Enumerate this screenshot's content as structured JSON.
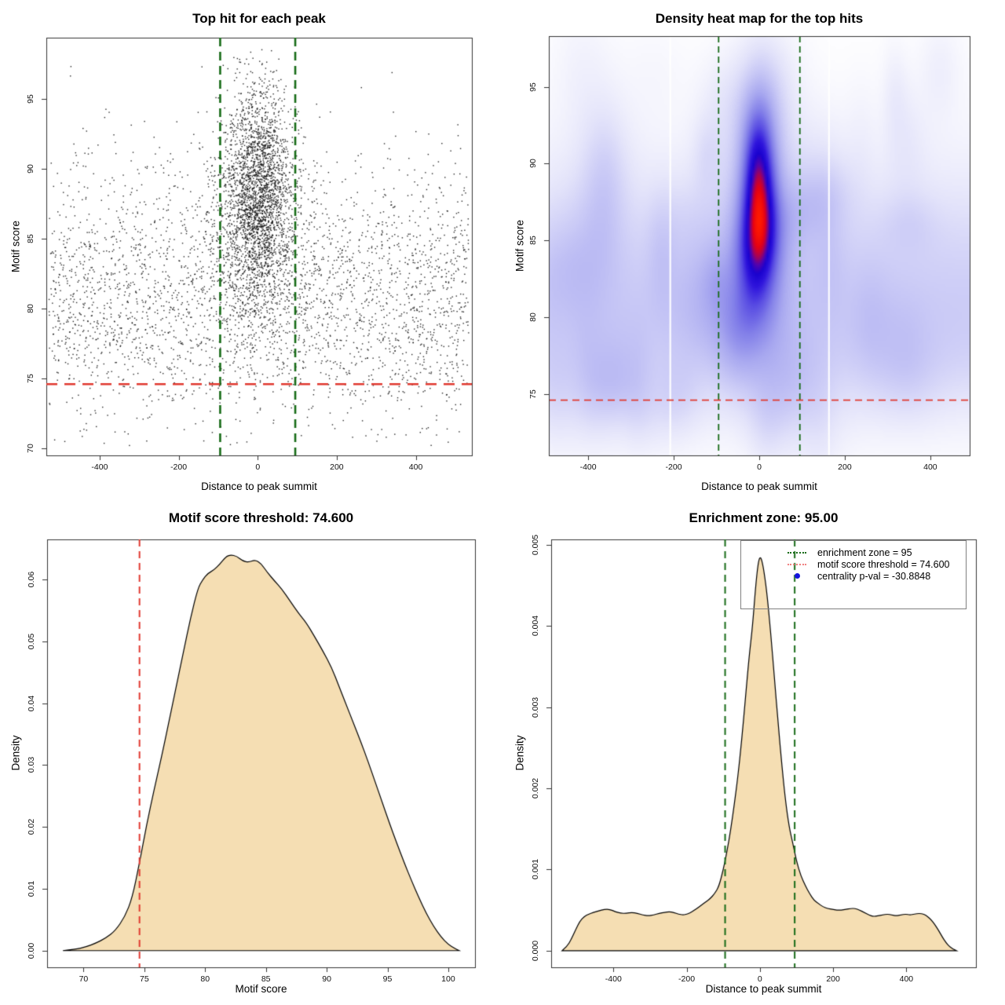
{
  "colors": {
    "green_line": "#176b17",
    "red_line": "#e03a30",
    "legend_salmon": "#f08080",
    "legend_blue": "#1515dd",
    "area_fill": "#f5deb3",
    "curve_stroke": "#000000",
    "point": "#141414",
    "axis": "#333333",
    "legend_border": "#808080"
  },
  "chart_data": [
    {
      "id": "top-hit-scatter",
      "type": "scatter",
      "title": "Top hit for each peak",
      "xlabel": "Distance to peak summit",
      "ylabel": "Motif score",
      "xlim": [
        -535,
        542
      ],
      "ylim": [
        69.5,
        99.4
      ],
      "xticks": {
        "values": [
          -400,
          -200,
          0,
          200,
          400
        ],
        "labels": [
          "-400",
          "-200",
          "0",
          "200",
          "400"
        ]
      },
      "yticks": {
        "values": [
          70,
          75,
          80,
          85,
          90,
          95
        ],
        "labels": [
          "70",
          "75",
          "80",
          "85",
          "90",
          "95"
        ]
      },
      "enrichment_zone_x": [
        -95,
        95
      ],
      "score_threshold_y": 74.6,
      "points_spec": {
        "seed": 42,
        "groups": [
          {
            "n": 3000,
            "x": {
              "dist": "uniform",
              "min": -528,
              "max": 534
            },
            "y": {
              "dist": "normal",
              "mean": 81,
              "sd": 4.6,
              "min": 70.2,
              "max": 98.8
            }
          },
          {
            "n": 1400,
            "x": {
              "dist": "normal",
              "mean": -2,
              "sd": 60,
              "min": -230,
              "max": 230
            },
            "y": {
              "dist": "normal",
              "mean": 86.5,
              "sd": 4.4,
              "min": 72.5,
              "max": 98.6
            }
          },
          {
            "n": 1500,
            "x": {
              "dist": "normal",
              "mean": 2,
              "sd": 38,
              "min": -165,
              "max": 165
            },
            "y": {
              "dist": "normal",
              "mean": 89,
              "sd": 3.6,
              "min": 74,
              "max": 98.4
            }
          }
        ]
      }
    },
    {
      "id": "density-heatmap",
      "type": "heatmap",
      "title": "Density heat map for the top hits",
      "xlabel": "Distance to peak summit",
      "ylabel": "Motif score",
      "xlim": [
        -492,
        492
      ],
      "ylim": [
        71.0,
        98.3
      ],
      "xticks": {
        "values": [
          -400,
          -200,
          0,
          200,
          400
        ],
        "labels": [
          "-400",
          "-200",
          "0",
          "200",
          "400"
        ]
      },
      "yticks": {
        "values": [
          75,
          80,
          85,
          90,
          95
        ],
        "labels": [
          "75",
          "80",
          "85",
          "90",
          "95"
        ]
      },
      "enrichment_zone_x": [
        -95,
        95
      ],
      "score_threshold_y": 74.6,
      "white_gaps_x": [
        -208,
        163
      ],
      "colormap": [
        [
          0.0,
          "#ffffff"
        ],
        [
          0.06,
          "#f5f5fd"
        ],
        [
          0.16,
          "#e3e3fa"
        ],
        [
          0.28,
          "#c9c9f6"
        ],
        [
          0.42,
          "#a9a9f0"
        ],
        [
          0.55,
          "#8380e9"
        ],
        [
          0.66,
          "#5a4ee3"
        ],
        [
          0.75,
          "#2f15dd"
        ],
        [
          0.82,
          "#1a02cf"
        ],
        [
          0.87,
          "#5403ae"
        ],
        [
          0.91,
          "#a80255"
        ],
        [
          0.95,
          "#e60113"
        ],
        [
          1.0,
          "#ff1a00"
        ]
      ],
      "field": {
        "blobs": [
          {
            "a": 0.55,
            "x": 0,
            "y": 87.6,
            "sx": 32,
            "sy": 3.6
          },
          {
            "a": 0.38,
            "x": -2,
            "y": 91.0,
            "sx": 29,
            "sy": 3.0
          },
          {
            "a": 0.3,
            "x": -8,
            "y": 84.2,
            "sx": 36,
            "sy": 3.2
          },
          {
            "a": 0.22,
            "x": 2,
            "y": 87.5,
            "sx": 60,
            "sy": 6.3
          },
          {
            "a": 0.13,
            "x": 20,
            "y": 95.3,
            "sx": 50,
            "sy": 2.7
          },
          {
            "a": 0.08,
            "x": -25,
            "y": 79.5,
            "sx": 75,
            "sy": 3.0
          }
        ],
        "ridges": [
          {
            "a": 0.3,
            "y": 81.5,
            "sy": 5.0
          },
          {
            "a": 0.12,
            "y": 77.0,
            "sy": 3.2
          },
          {
            "a": 0.08,
            "y": 87.0,
            "sy": 6.0
          }
        ],
        "patches": {
          "count": 48,
          "seed": 11,
          "x": [
            -500,
            500
          ],
          "y": [
            72.5,
            96.5
          ],
          "a": [
            0.04,
            0.12
          ],
          "sx": [
            20,
            60
          ],
          "sy": [
            1.4,
            3.4
          ]
        }
      }
    },
    {
      "id": "motif-score-density",
      "type": "area",
      "title": "Motif score threshold: 74.600",
      "xlabel": "Motif score",
      "ylabel": "Density",
      "xlim": [
        67.0,
        102.2
      ],
      "ylim": [
        -0.0027,
        0.0665
      ],
      "xticks": {
        "values": [
          70,
          75,
          80,
          85,
          90,
          95,
          100
        ],
        "labels": [
          "70",
          "75",
          "80",
          "85",
          "90",
          "95",
          "100"
        ]
      },
      "yticks": {
        "values": [
          0,
          0.01,
          0.02,
          0.03,
          0.04,
          0.05,
          0.06
        ],
        "labels": [
          "0.00",
          "0.01",
          "0.02",
          "0.03",
          "0.04",
          "0.05",
          "0.06"
        ]
      },
      "score_threshold_x": 74.6,
      "curve": [
        [
          68.3,
          0
        ],
        [
          69.3,
          0.0002
        ],
        [
          70.2,
          0.0006
        ],
        [
          71,
          0.0012
        ],
        [
          71.8,
          0.002
        ],
        [
          72.6,
          0.0032
        ],
        [
          73.4,
          0.0055
        ],
        [
          74,
          0.0085
        ],
        [
          74.6,
          0.0142
        ],
        [
          75.2,
          0.0205
        ],
        [
          75.8,
          0.026
        ],
        [
          76.4,
          0.0312
        ],
        [
          77,
          0.0368
        ],
        [
          77.6,
          0.0425
        ],
        [
          78.2,
          0.0482
        ],
        [
          78.8,
          0.0538
        ],
        [
          79.4,
          0.0586
        ],
        [
          79.8,
          0.06
        ],
        [
          80.2,
          0.061
        ],
        [
          80.7,
          0.0615
        ],
        [
          81.2,
          0.0625
        ],
        [
          81.7,
          0.0637
        ],
        [
          82.1,
          0.064
        ],
        [
          82.6,
          0.0638
        ],
        [
          83.1,
          0.063
        ],
        [
          83.6,
          0.0628
        ],
        [
          84.1,
          0.0632
        ],
        [
          84.6,
          0.0626
        ],
        [
          85.1,
          0.0612
        ],
        [
          85.7,
          0.0598
        ],
        [
          86.3,
          0.0585
        ],
        [
          87,
          0.0565
        ],
        [
          87.7,
          0.0545
        ],
        [
          88.3,
          0.0531
        ],
        [
          89,
          0.0508
        ],
        [
          89.7,
          0.0484
        ],
        [
          90.4,
          0.0458
        ],
        [
          91,
          0.0428
        ],
        [
          91.6,
          0.0398
        ],
        [
          92.2,
          0.0368
        ],
        [
          92.8,
          0.0338
        ],
        [
          93.4,
          0.0306
        ],
        [
          94,
          0.0272
        ],
        [
          94.6,
          0.0238
        ],
        [
          95.2,
          0.0204
        ],
        [
          95.8,
          0.0172
        ],
        [
          96.4,
          0.0141
        ],
        [
          97,
          0.0112
        ],
        [
          97.6,
          0.0085
        ],
        [
          98.2,
          0.006
        ],
        [
          98.8,
          0.0039
        ],
        [
          99.4,
          0.0022
        ],
        [
          100,
          0.001
        ],
        [
          100.5,
          0.0004
        ],
        [
          100.9,
          0
        ]
      ]
    },
    {
      "id": "summit-distance-density",
      "type": "area",
      "title": "Enrichment zone: 95.00",
      "xlabel": "Distance to peak summit",
      "ylabel": "Density",
      "xlim": [
        -570,
        590
      ],
      "ylim": [
        -0.000205,
        0.005065
      ],
      "xticks": {
        "values": [
          -400,
          -200,
          0,
          200,
          400
        ],
        "labels": [
          "-400",
          "-200",
          "0",
          "200",
          "400"
        ]
      },
      "yticks": {
        "values": [
          0,
          0.001,
          0.002,
          0.003,
          0.004,
          0.005
        ],
        "labels": [
          "0.000",
          "0.001",
          "0.002",
          "0.003",
          "0.004",
          "0.005"
        ]
      },
      "enrichment_zone_x": [
        -95,
        95
      ],
      "curve": [
        [
          -540,
          0
        ],
        [
          -527,
          5e-05
        ],
        [
          -515,
          0.00014
        ],
        [
          -503,
          0.00026
        ],
        [
          -492,
          0.00036
        ],
        [
          -480,
          0.00042
        ],
        [
          -468,
          0.00045
        ],
        [
          -455,
          0.00047
        ],
        [
          -440,
          0.00049
        ],
        [
          -425,
          0.00051
        ],
        [
          -410,
          0.00051
        ],
        [
          -395,
          0.00048
        ],
        [
          -380,
          0.00046
        ],
        [
          -365,
          0.00046
        ],
        [
          -350,
          0.00047
        ],
        [
          -335,
          0.00046
        ],
        [
          -320,
          0.00044
        ],
        [
          -305,
          0.00043
        ],
        [
          -290,
          0.00044
        ],
        [
          -275,
          0.00046
        ],
        [
          -260,
          0.00047
        ],
        [
          -248,
          0.00048
        ],
        [
          -235,
          0.00047
        ],
        [
          -222,
          0.00045
        ],
        [
          -210,
          0.00044
        ],
        [
          -198,
          0.00045
        ],
        [
          -185,
          0.00048
        ],
        [
          -172,
          0.00052
        ],
        [
          -160,
          0.00056
        ],
        [
          -148,
          0.0006
        ],
        [
          -136,
          0.00064
        ],
        [
          -124,
          0.0007
        ],
        [
          -112,
          0.00079
        ],
        [
          -100,
          0.001
        ],
        [
          -90,
          0.00122
        ],
        [
          -80,
          0.00148
        ],
        [
          -70,
          0.0018
        ],
        [
          -60,
          0.00215
        ],
        [
          -50,
          0.00258
        ],
        [
          -40,
          0.00308
        ],
        [
          -30,
          0.0036
        ],
        [
          -20,
          0.004
        ],
        [
          -12,
          0.00447
        ],
        [
          -5,
          0.00477
        ],
        [
          0,
          0.00485
        ],
        [
          5,
          0.00482
        ],
        [
          12,
          0.00465
        ],
        [
          20,
          0.00437
        ],
        [
          30,
          0.00389
        ],
        [
          40,
          0.00334
        ],
        [
          50,
          0.00279
        ],
        [
          60,
          0.00228
        ],
        [
          70,
          0.00184
        ],
        [
          80,
          0.00152
        ],
        [
          90,
          0.00132
        ],
        [
          100,
          0.0011
        ],
        [
          112,
          0.00092
        ],
        [
          124,
          0.0008
        ],
        [
          136,
          0.0007
        ],
        [
          148,
          0.00062
        ],
        [
          160,
          0.00058
        ],
        [
          172,
          0.00054
        ],
        [
          185,
          0.00052
        ],
        [
          198,
          0.00051
        ],
        [
          210,
          0.0005
        ],
        [
          222,
          0.0005
        ],
        [
          235,
          0.00051
        ],
        [
          248,
          0.00052
        ],
        [
          260,
          0.00052
        ],
        [
          272,
          0.0005
        ],
        [
          285,
          0.00047
        ],
        [
          298,
          0.00044
        ],
        [
          310,
          0.00042
        ],
        [
          322,
          0.00043
        ],
        [
          335,
          0.00044
        ],
        [
          348,
          0.00045
        ],
        [
          360,
          0.00044
        ],
        [
          372,
          0.00043
        ],
        [
          385,
          0.00044
        ],
        [
          398,
          0.00045
        ],
        [
          410,
          0.00044
        ],
        [
          422,
          0.00045
        ],
        [
          435,
          0.00046
        ],
        [
          448,
          0.00045
        ],
        [
          458,
          0.00042
        ],
        [
          468,
          0.00038
        ],
        [
          478,
          0.00032
        ],
        [
          488,
          0.00025
        ],
        [
          498,
          0.00017
        ],
        [
          508,
          0.0001
        ],
        [
          518,
          5e-05
        ],
        [
          528,
          2e-05
        ],
        [
          537,
          0
        ]
      ],
      "legend": {
        "entries": [
          {
            "label": "enrichment zone = 95",
            "glyph": "dotted-line",
            "color": "#176b17"
          },
          {
            "label": "motif score threshold = 74.600",
            "glyph": "dotted-line",
            "color": "#f08080"
          },
          {
            "label": "centrality p-val = -30.8848",
            "glyph": "dot",
            "color": "#1515dd"
          }
        ]
      }
    }
  ]
}
